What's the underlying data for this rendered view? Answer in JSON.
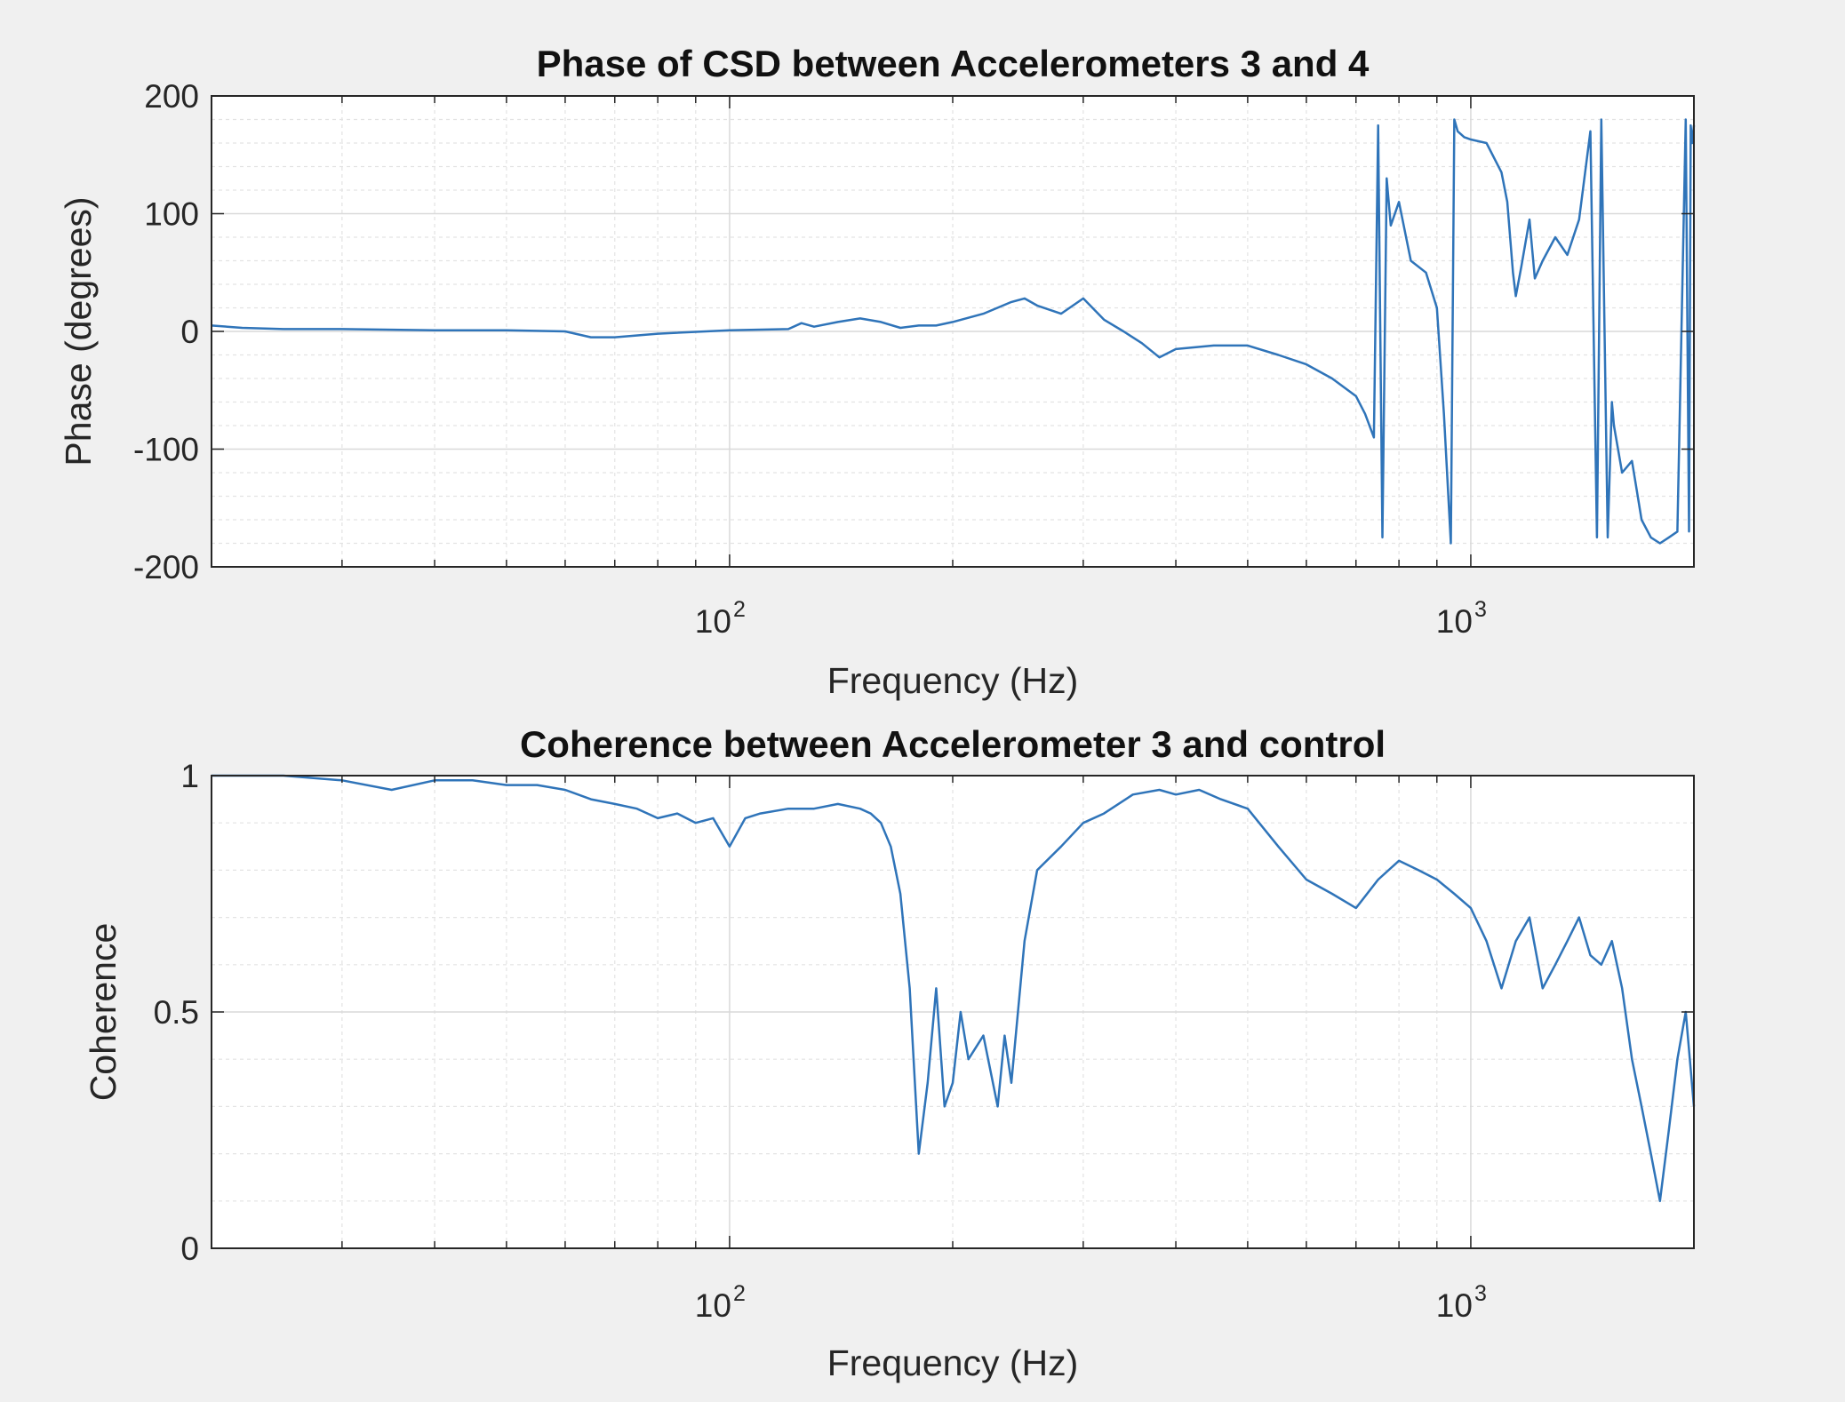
{
  "chart_data": [
    {
      "type": "line",
      "title": "Phase of CSD between Accelerometers 3 and 4",
      "xlabel": "Frequency (Hz)",
      "ylabel": "Phase (degrees)",
      "xscale": "log",
      "xlim": [
        20,
        2000
      ],
      "ylim": [
        -200,
        200
      ],
      "yticks": [
        200,
        100,
        0,
        -100,
        -200
      ],
      "xticks": [
        100,
        1000
      ],
      "xtick_labels": [
        {
          "base": "10",
          "exp": "2"
        },
        {
          "base": "10",
          "exp": "3"
        }
      ],
      "grid": true,
      "minor_grid": true,
      "color": "#2f74b9",
      "series": [
        {
          "x": [
            20,
            22,
            25,
            30,
            40,
            50,
            60,
            65,
            70,
            80,
            100,
            120,
            125,
            130,
            140,
            150,
            160,
            170,
            180,
            190,
            200,
            220,
            240,
            250,
            260,
            280,
            300,
            320,
            340,
            360,
            380,
            400,
            450,
            500,
            550,
            600,
            650,
            700,
            720,
            740,
            750,
            760,
            770,
            780,
            800,
            830,
            870,
            900,
            920,
            940,
            950,
            960,
            980,
            1000,
            1050,
            1100,
            1120,
            1140,
            1150,
            1170,
            1200,
            1220,
            1250,
            1300,
            1350,
            1400,
            1450,
            1480,
            1500,
            1530,
            1550,
            1560,
            1580,
            1600,
            1650,
            1700,
            1750,
            1800,
            1850,
            1900,
            1950,
            1970,
            1980,
            1990,
            2000
          ],
          "y": [
            5,
            3,
            2,
            2,
            1,
            1,
            0,
            -5,
            -5,
            -2,
            1,
            2,
            7,
            4,
            8,
            11,
            8,
            3,
            5,
            5,
            8,
            15,
            25,
            28,
            22,
            15,
            28,
            10,
            0,
            -10,
            -22,
            -15,
            -12,
            -12,
            -20,
            -28,
            -40,
            -55,
            -70,
            -90,
            175,
            -175,
            130,
            90,
            110,
            60,
            50,
            20,
            -70,
            -180,
            180,
            170,
            165,
            163,
            160,
            135,
            110,
            50,
            30,
            55,
            95,
            45,
            60,
            80,
            65,
            95,
            170,
            -175,
            180,
            -175,
            -60,
            -80,
            -100,
            -120,
            -110,
            -160,
            -175,
            -180,
            -175,
            -170,
            180,
            -170,
            175,
            160,
            175
          ]
        }
      ]
    },
    {
      "type": "line",
      "title": "Coherence between Accelerometer 3 and control",
      "xlabel": "Frequency (Hz)",
      "ylabel": "Coherence",
      "xscale": "log",
      "xlim": [
        20,
        2000
      ],
      "ylim": [
        0,
        1
      ],
      "yticks": [
        1,
        0.5,
        0
      ],
      "xticks": [
        100,
        1000
      ],
      "xtick_labels": [
        {
          "base": "10",
          "exp": "2"
        },
        {
          "base": "10",
          "exp": "3"
        }
      ],
      "grid": true,
      "minor_grid": true,
      "color": "#2f74b9",
      "series": [
        {
          "x": [
            20,
            25,
            30,
            35,
            40,
            45,
            50,
            55,
            60,
            65,
            70,
            75,
            80,
            85,
            90,
            95,
            100,
            105,
            110,
            120,
            130,
            140,
            150,
            155,
            160,
            165,
            170,
            175,
            180,
            185,
            190,
            195,
            200,
            205,
            210,
            220,
            230,
            235,
            240,
            250,
            260,
            280,
            300,
            320,
            350,
            380,
            400,
            430,
            460,
            500,
            550,
            600,
            650,
            700,
            750,
            800,
            850,
            900,
            950,
            1000,
            1050,
            1100,
            1150,
            1200,
            1250,
            1300,
            1350,
            1400,
            1450,
            1500,
            1550,
            1600,
            1650,
            1700,
            1750,
            1800,
            1850,
            1900,
            1950,
            2000
          ],
          "y": [
            1.0,
            1.0,
            0.99,
            0.97,
            0.99,
            0.99,
            0.98,
            0.98,
            0.97,
            0.95,
            0.94,
            0.93,
            0.91,
            0.92,
            0.9,
            0.91,
            0.85,
            0.91,
            0.92,
            0.93,
            0.93,
            0.94,
            0.93,
            0.92,
            0.9,
            0.85,
            0.75,
            0.55,
            0.2,
            0.35,
            0.55,
            0.3,
            0.35,
            0.5,
            0.4,
            0.45,
            0.3,
            0.45,
            0.35,
            0.65,
            0.8,
            0.85,
            0.9,
            0.92,
            0.96,
            0.97,
            0.96,
            0.97,
            0.95,
            0.93,
            0.85,
            0.78,
            0.75,
            0.72,
            0.78,
            0.82,
            0.8,
            0.78,
            0.75,
            0.72,
            0.65,
            0.55,
            0.65,
            0.7,
            0.55,
            0.6,
            0.65,
            0.7,
            0.62,
            0.6,
            0.65,
            0.55,
            0.4,
            0.3,
            0.2,
            0.1,
            0.25,
            0.4,
            0.5,
            0.3
          ]
        }
      ]
    }
  ]
}
